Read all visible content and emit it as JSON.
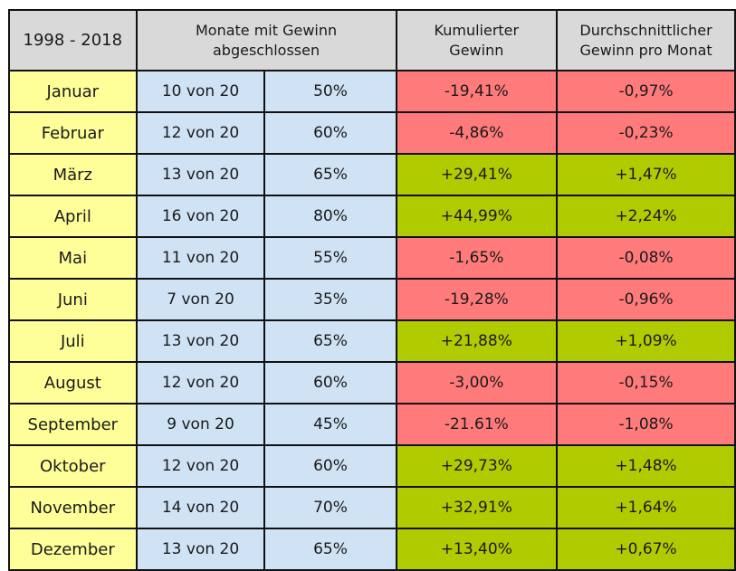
{
  "chart_data": {
    "type": "table",
    "header": {
      "period": "1998 - 2018",
      "months_profit": "Monate mit Gewinn abgeschlossen",
      "cumulative": "Kumulierter Gewinn",
      "average": "Durchschnittlicher Gewinn pro Monat"
    },
    "colors": {
      "header": "#d9d9d9",
      "month": "#ffff99",
      "stats": "#cfe3f5",
      "negative": "#ff7b7b",
      "positive": "#b0cc00"
    },
    "rows": [
      {
        "month": "Januar",
        "count": "10 von 20",
        "percent": "50%",
        "cumulative": "-19,41%",
        "average": "-0,97%",
        "sign": "neg"
      },
      {
        "month": "Februar",
        "count": "12 von 20",
        "percent": "60%",
        "cumulative": "-4,86%",
        "average": "-0,23%",
        "sign": "neg"
      },
      {
        "month": "März",
        "count": "13 von 20",
        "percent": "65%",
        "cumulative": "+29,41%",
        "average": "+1,47%",
        "sign": "pos"
      },
      {
        "month": "April",
        "count": "16 von 20",
        "percent": "80%",
        "cumulative": "+44,99%",
        "average": "+2,24%",
        "sign": "pos"
      },
      {
        "month": "Mai",
        "count": "11 von 20",
        "percent": "55%",
        "cumulative": "-1,65%",
        "average": "-0,08%",
        "sign": "neg"
      },
      {
        "month": "Juni",
        "count": "7 von 20",
        "percent": "35%",
        "cumulative": "-19,28%",
        "average": "-0,96%",
        "sign": "neg"
      },
      {
        "month": "Juli",
        "count": "13 von 20",
        "percent": "65%",
        "cumulative": "+21,88%",
        "average": "+1,09%",
        "sign": "pos"
      },
      {
        "month": "August",
        "count": "12 von 20",
        "percent": "60%",
        "cumulative": "-3,00%",
        "average": "-0,15%",
        "sign": "neg"
      },
      {
        "month": "September",
        "count": "9 von 20",
        "percent": "45%",
        "cumulative": "-21.61%",
        "average": "-1,08%",
        "sign": "neg"
      },
      {
        "month": "Oktober",
        "count": "12 von 20",
        "percent": "60%",
        "cumulative": "+29,73%",
        "average": "+1,48%",
        "sign": "pos"
      },
      {
        "month": "November",
        "count": "14 von 20",
        "percent": "70%",
        "cumulative": "+32,91%",
        "average": "+1,64%",
        "sign": "pos"
      },
      {
        "month": "Dezember",
        "count": "13 von 20",
        "percent": "65%",
        "cumulative": "+13,40%",
        "average": "+0,67%",
        "sign": "pos"
      }
    ]
  }
}
